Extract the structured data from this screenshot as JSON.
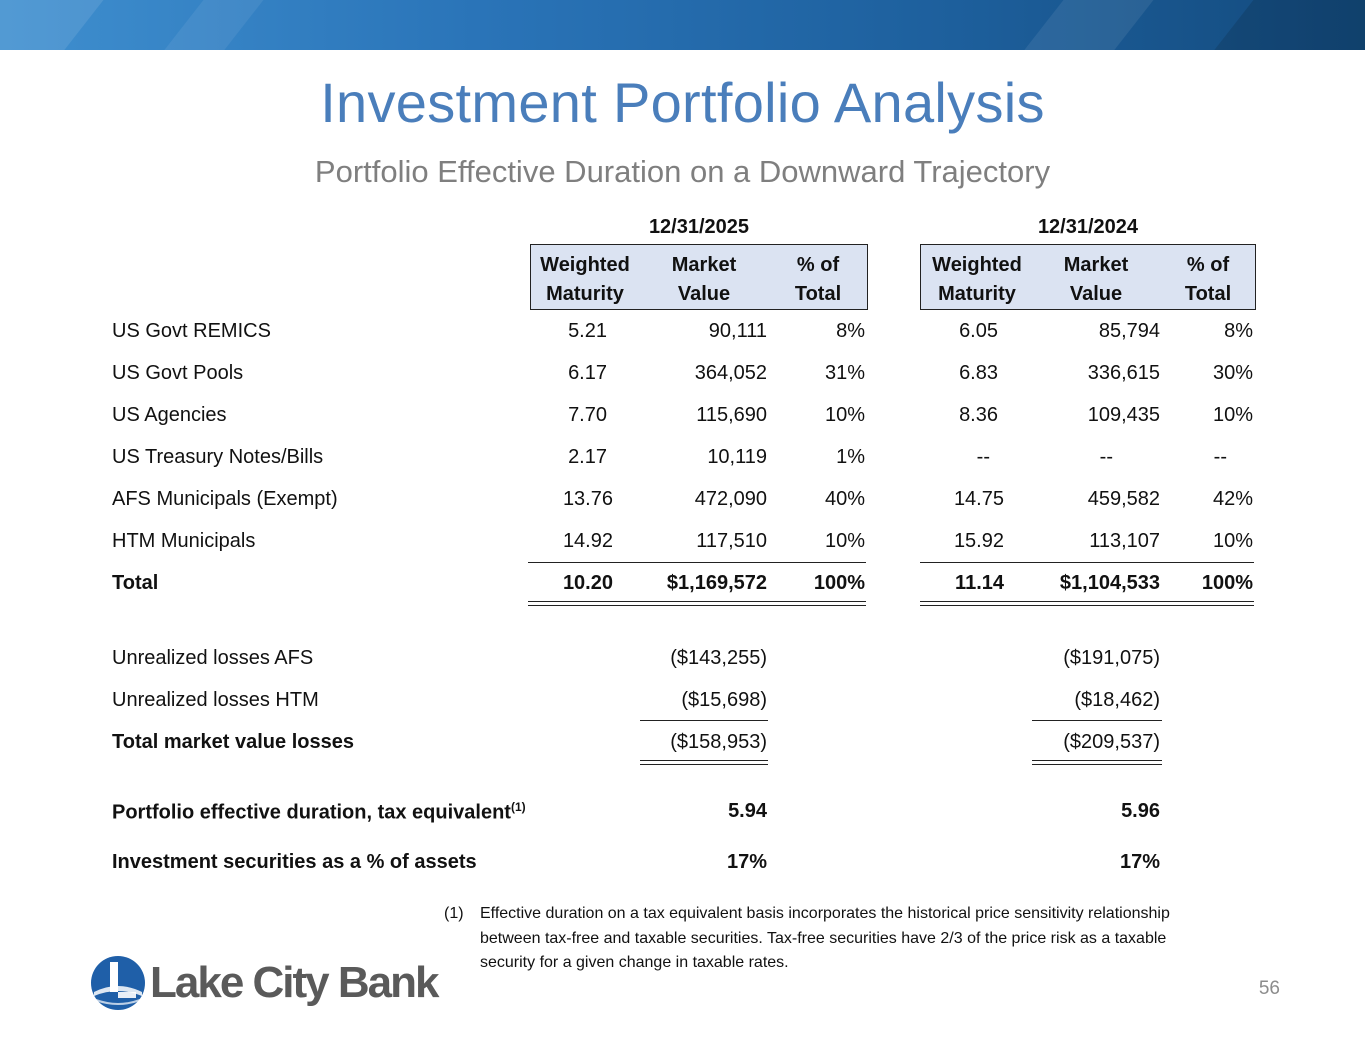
{
  "slide": {
    "title": "Investment Portfolio Analysis",
    "subtitle": "Portfolio Effective Duration on a Downward Trajectory",
    "page_number": "56"
  },
  "table": {
    "periods": [
      "12/31/2025",
      "12/31/2024"
    ],
    "column_headers": [
      [
        "Weighted",
        "Maturity"
      ],
      [
        "Market",
        "Value"
      ],
      [
        "% of",
        "Total"
      ]
    ],
    "rows": [
      {
        "label": "US Govt REMICS",
        "p1": [
          "5.21",
          "90,111",
          "8%"
        ],
        "p2": [
          "6.05",
          "85,794",
          "8%"
        ]
      },
      {
        "label": "US Govt Pools",
        "p1": [
          "6.17",
          "364,052",
          "31%"
        ],
        "p2": [
          "6.83",
          "336,615",
          "30%"
        ]
      },
      {
        "label": "US Agencies",
        "p1": [
          "7.70",
          "115,690",
          "10%"
        ],
        "p2": [
          "8.36",
          "109,435",
          "10%"
        ]
      },
      {
        "label": "US Treasury Notes/Bills",
        "p1": [
          "2.17",
          "10,119",
          "1%"
        ],
        "p2": [
          "--",
          "--",
          "--"
        ]
      },
      {
        "label": "AFS Municipals (Exempt)",
        "p1": [
          "13.76",
          "472,090",
          "40%"
        ],
        "p2": [
          "14.75",
          "459,582",
          "42%"
        ]
      },
      {
        "label": "HTM Municipals",
        "p1": [
          "14.92",
          "117,510",
          "10%"
        ],
        "p2": [
          "15.92",
          "113,107",
          "10%"
        ]
      }
    ],
    "total": {
      "label": "Total",
      "p1": [
        "10.20",
        "$1,169,572",
        "100%"
      ],
      "p2": [
        "11.14",
        "$1,104,533",
        "100%"
      ]
    }
  },
  "losses": [
    {
      "label": "Unrealized losses AFS",
      "p1": "($143,255)",
      "p2": "($191,075)"
    },
    {
      "label": "Unrealized losses HTM",
      "p1": "($15,698)",
      "p2": "($18,462)"
    },
    {
      "label": "Total market value losses",
      "p1": "($158,953)",
      "p2": "($209,537)"
    }
  ],
  "metrics": [
    {
      "label": "Portfolio effective duration, tax equivalent",
      "sup": "(1)",
      "p1": "5.94",
      "p2": "5.96"
    },
    {
      "label": "Investment securities as a % of assets",
      "p1": "17%",
      "p2": "17%"
    }
  ],
  "footnote": {
    "marker": "(1)",
    "text": "Effective duration on a tax equivalent basis incorporates the historical price sensitivity relationship between tax-free and taxable securities. Tax-free securities have 2/3 of the price risk as a taxable security for a given change in taxable rates."
  },
  "logo": {
    "text": "Lake City Bank",
    "primary_color": "#1f5fa8",
    "text_color": "#5a5a5a"
  },
  "colors": {
    "title": "#4a7ebb",
    "subtitle": "#7f7f7f",
    "header_fill": "#dbe3f2",
    "banner": "#2a74b8"
  }
}
